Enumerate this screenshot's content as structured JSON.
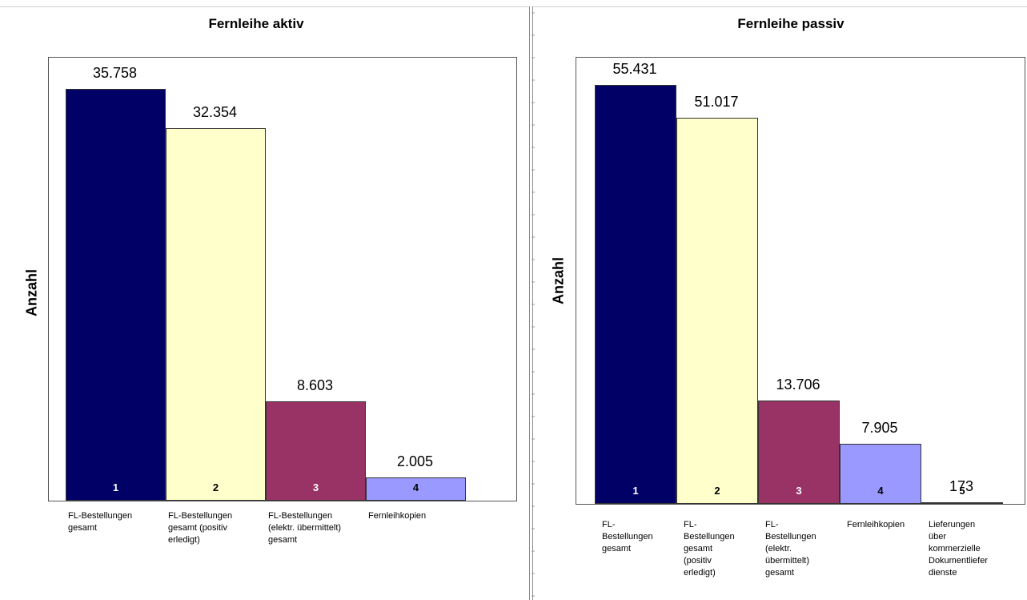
{
  "chart_data": [
    {
      "type": "bar",
      "title": "Fernleihe aktiv",
      "ylabel": "Anzahl",
      "ylim": [
        0,
        38500
      ],
      "grid": false,
      "categories": [
        "FL-Bestellungen gesamt",
        "FL-Bestellungen gesamt (positiv erledigt)",
        "FL-Bestellungen (elektr. übermittelt) gesamt",
        "Fernleihkopien"
      ],
      "values": [
        35758,
        32354,
        8603,
        2005
      ],
      "value_labels": [
        "35.758",
        "32.354",
        "8.603",
        "2.005"
      ],
      "bar_numbers": [
        "1",
        "2",
        "3",
        "4"
      ],
      "colors": [
        "#000066",
        "#ffffcc",
        "#993366",
        "#9999ff"
      ],
      "number_colors": [
        "#ffffff",
        "#000000",
        "#ffffff",
        "#000000"
      ]
    },
    {
      "type": "bar",
      "title": "Fernleihe passiv",
      "ylabel": "Anzahl",
      "ylim": [
        0,
        59000
      ],
      "grid": false,
      "categories": [
        "FL-Bestellungen gesamt",
        "FL-Bestellungen gesamt (positiv erledigt)",
        "FL-Bestellungen (elektr. übermittelt) gesamt",
        "Fernleihkopien",
        "Lieferungen über kommerzielle Dokumentlieferdienste"
      ],
      "values": [
        55431,
        51017,
        13706,
        7905,
        173
      ],
      "value_labels": [
        "55.431",
        "51.017",
        "13.706",
        "7.905",
        "173"
      ],
      "bar_numbers": [
        "1",
        "2",
        "3",
        "4",
        "5"
      ],
      "colors": [
        "#000066",
        "#ffffcc",
        "#993366",
        "#9999ff",
        "#ccffff"
      ],
      "number_colors": [
        "#ffffff",
        "#000000",
        "#ffffff",
        "#000000",
        "#000000"
      ]
    }
  ],
  "category_display": [
    [
      "FL-Bestellungen\ngesamt",
      "FL-Bestellungen\ngesamt (positiv\nerledigt)",
      "FL-Bestellungen\n(elektr. übermittelt)\ngesamt",
      "Fernleihkopien"
    ],
    [
      "FL-\nBestellungen\ngesamt",
      "FL-\nBestellungen\ngesamt\n(positiv\nerledigt)",
      "FL-\nBestellungen\n(elektr.\nübermittelt)\ngesamt",
      "Fernleihkopien",
      "Lieferungen\nüber\nkommerzielle\nDokumentliefer\ndienste"
    ]
  ]
}
